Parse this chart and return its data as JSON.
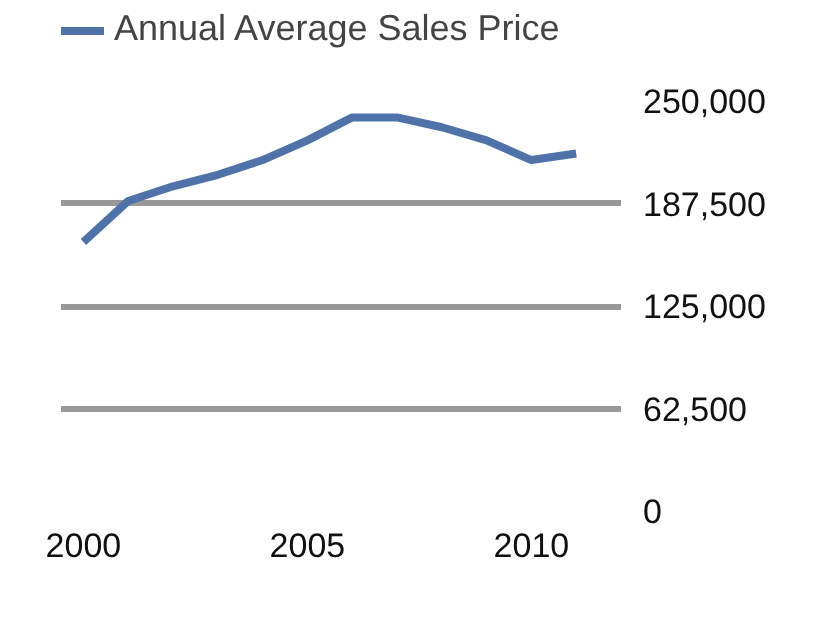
{
  "chart_data": {
    "type": "line",
    "x": [
      2000,
      2001,
      2002,
      2003,
      2004,
      2005,
      2006,
      2007,
      2008,
      2009,
      2010,
      2011
    ],
    "series": [
      {
        "name": "Annual Average Sales Price",
        "color": "#4f73a8",
        "values": [
          164000,
          189000,
          198000,
          205000,
          214000,
          226000,
          240000,
          240000,
          234000,
          226000,
          214000,
          218000
        ]
      }
    ],
    "xlim": [
      1999.5,
      2012
    ],
    "xticks": [
      2000,
      2005,
      2010
    ],
    "ylim": [
      0,
      250000
    ],
    "yticks": [
      0,
      {
        "value": 62500,
        "label": "62,500"
      },
      {
        "value": 125000,
        "label": "125,000"
      },
      {
        "value": 187500,
        "label": "187,500"
      },
      {
        "value": 250000,
        "label": "250,000"
      }
    ],
    "grid": "y",
    "legend": "top",
    "marker": "none",
    "line_style": "solid"
  }
}
